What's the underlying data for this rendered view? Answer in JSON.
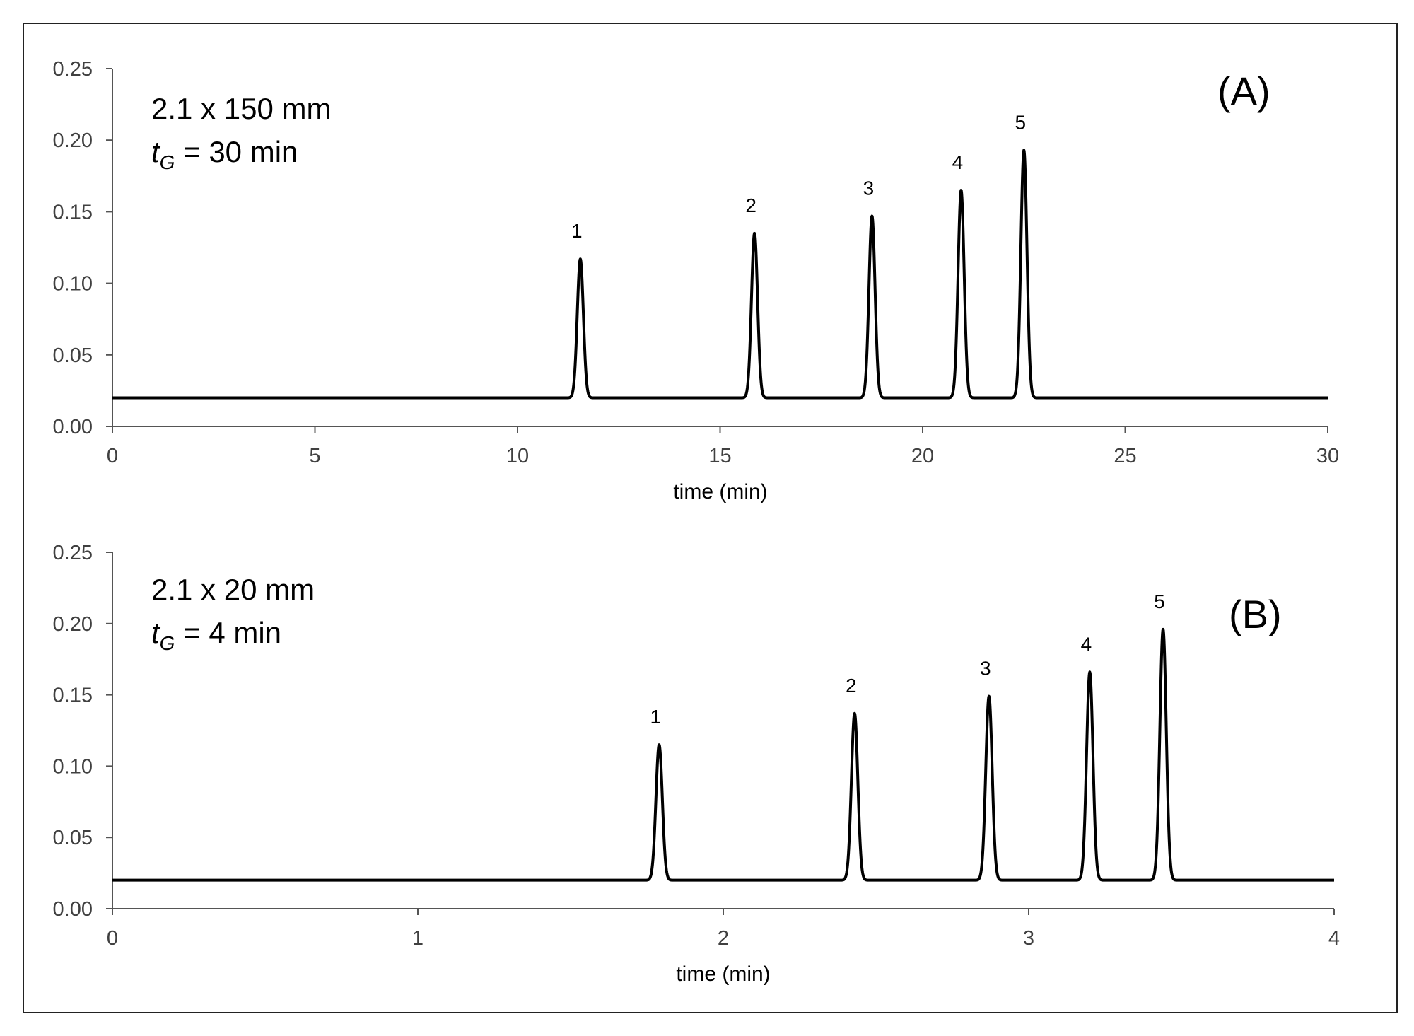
{
  "chart_data": [
    {
      "type": "line",
      "panel_label": "(A)",
      "annotation": {
        "line1": "2.1 x 150 mm",
        "t_symbol": "t",
        "t_sub": "G",
        "t_rest": " = 30 min"
      },
      "xlabel": "time (min)",
      "ylabel": "",
      "xlim": [
        0,
        30
      ],
      "ylim": [
        0,
        0.25
      ],
      "xticks": [
        "0",
        "5",
        "10",
        "15",
        "20",
        "25",
        "30"
      ],
      "xtick_values": [
        0,
        5,
        10,
        15,
        20,
        25,
        30
      ],
      "yticks": [
        "0.00",
        "0.05",
        "0.10",
        "0.15",
        "0.20",
        "0.25"
      ],
      "ytick_values": [
        0,
        0.05,
        0.1,
        0.15,
        0.2,
        0.25
      ],
      "baseline": 0.02,
      "peak_width_sigma": 0.075,
      "peaks": [
        {
          "label": "1",
          "time": 11.55,
          "height": 0.117
        },
        {
          "label": "2",
          "time": 15.85,
          "height": 0.135
        },
        {
          "label": "3",
          "time": 18.75,
          "height": 0.147
        },
        {
          "label": "4",
          "time": 20.95,
          "height": 0.165
        },
        {
          "label": "5",
          "time": 22.5,
          "height": 0.193
        }
      ]
    },
    {
      "type": "line",
      "panel_label": "(B)",
      "annotation": {
        "line1": "2.1 x 20 mm",
        "t_symbol": "t",
        "t_sub": "G",
        "t_rest": " = 4 min"
      },
      "xlabel": "time (min)",
      "ylabel": "",
      "xlim": [
        0,
        4
      ],
      "ylim": [
        0,
        0.25
      ],
      "xticks": [
        "0",
        "1",
        "2",
        "3",
        "4"
      ],
      "xtick_values": [
        0,
        1,
        2,
        3,
        4
      ],
      "yticks": [
        "0.00",
        "0.05",
        "0.10",
        "0.15",
        "0.20",
        "0.25"
      ],
      "ytick_values": [
        0,
        0.05,
        0.1,
        0.15,
        0.2,
        0.25
      ],
      "baseline": 0.02,
      "peak_width_sigma": 0.0105,
      "peaks": [
        {
          "label": "1",
          "time": 1.79,
          "height": 0.115
        },
        {
          "label": "2",
          "time": 2.43,
          "height": 0.137
        },
        {
          "label": "3",
          "time": 2.87,
          "height": 0.149
        },
        {
          "label": "4",
          "time": 3.2,
          "height": 0.166
        },
        {
          "label": "5",
          "time": 3.44,
          "height": 0.196
        }
      ]
    }
  ]
}
